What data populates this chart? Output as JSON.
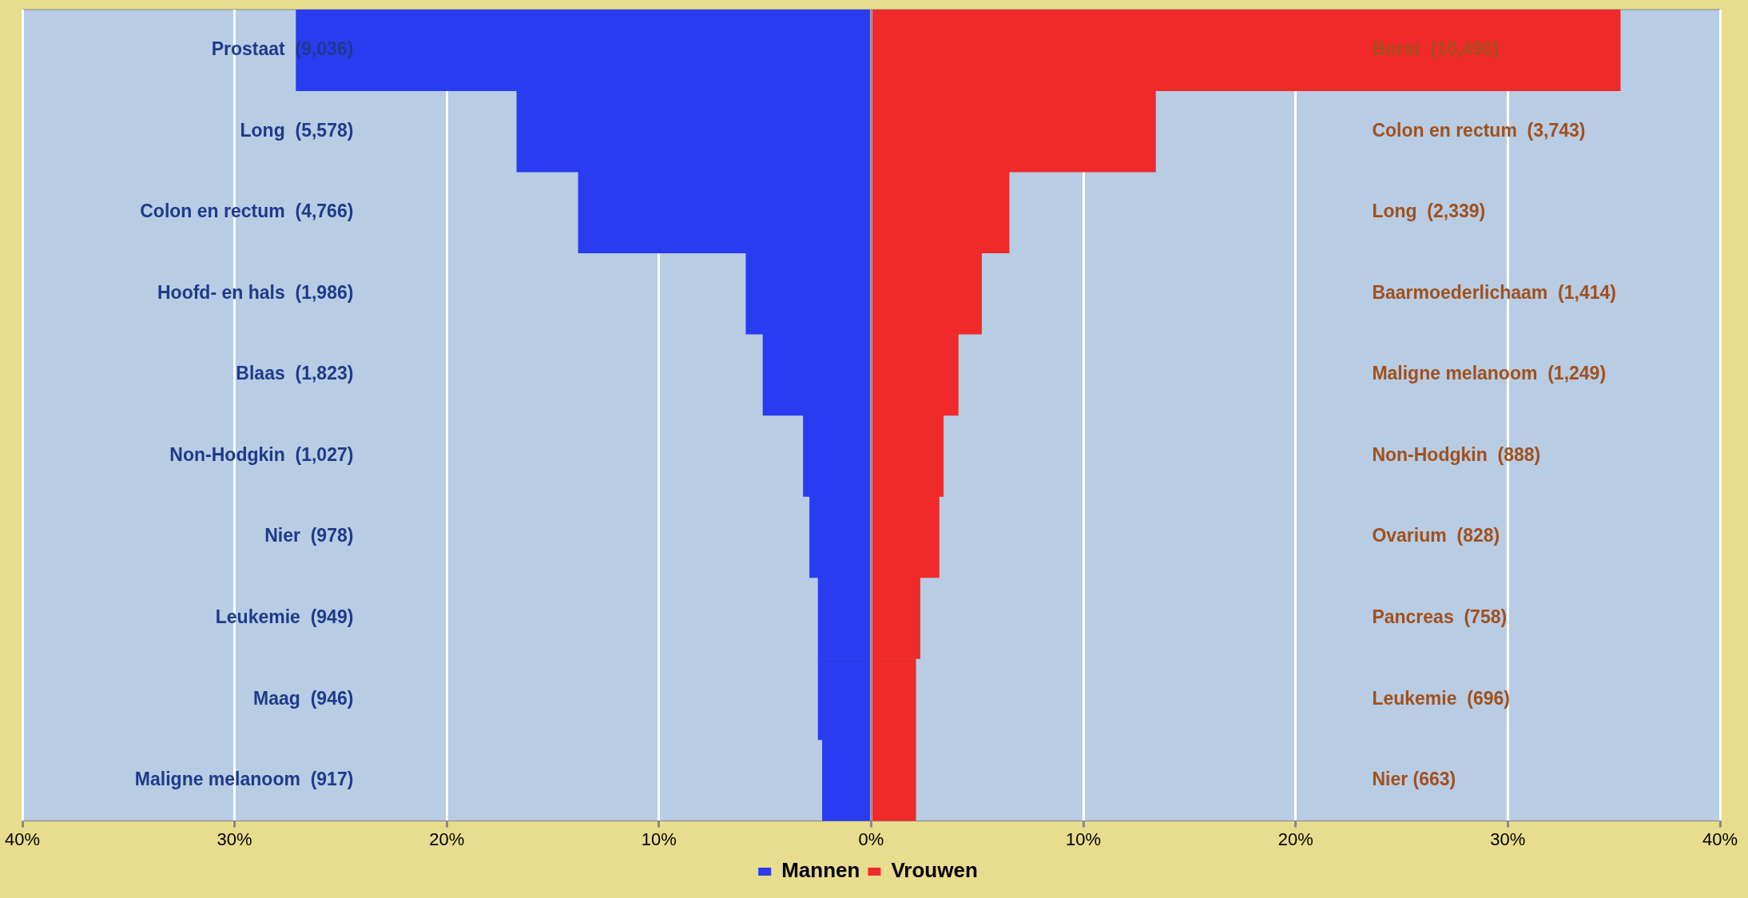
{
  "chart_data": {
    "type": "bar",
    "orientation": "horizontal",
    "stacked": true,
    "categories": [
      "Prostaat  (9,036)",
      "Long  (5,578)",
      "Colon en rectum  (4,766)",
      "Hoofd- en hals  (1,986)",
      "Blaas  (1,823)",
      "Non-Hodgkin  (1,027)",
      "Nier  (978)",
      "Leukemie  (949)",
      "Maag  (946)",
      "Maligne melanoom  (917)"
    ],
    "y2_categories": [
      "Borst  (10,490)",
      "Colon en rectum  (3,743)",
      "Long  (2,339)",
      "Baarmoederlichaam  (1,414)",
      "Maligne melanoom  (1,249)",
      "Non-Hodgkin  (888)",
      "Ovarium  (828)",
      "Pancreas  (758)",
      "Leukemie  (696)",
      "Nier (663)"
    ],
    "series": [
      {
        "name": "Mannen",
        "color": "#2a3cf0",
        "values": [
          -27.1,
          -16.7,
          -13.8,
          -5.9,
          -5.1,
          -3.2,
          -2.9,
          -2.5,
          -2.5,
          -2.3
        ]
      },
      {
        "name": "Vrouwen",
        "color": "#f02a2a",
        "values": [
          35.3,
          13.4,
          6.5,
          5.2,
          4.1,
          3.4,
          3.2,
          2.3,
          2.1,
          2.1
        ]
      }
    ],
    "xlim": [
      -40,
      40
    ],
    "xticks": [
      {
        "value": -40,
        "label": "40%"
      },
      {
        "value": -30,
        "label": "30%"
      },
      {
        "value": -20,
        "label": "20%"
      },
      {
        "value": -10,
        "label": "10%"
      },
      {
        "value": 0,
        "label": "0%"
      },
      {
        "value": 10,
        "label": "10%"
      },
      {
        "value": 20,
        "label": "20%"
      },
      {
        "value": 30,
        "label": "30%"
      },
      {
        "value": 40,
        "label": "40%"
      }
    ],
    "grid": "x",
    "legend": "bottom"
  }
}
